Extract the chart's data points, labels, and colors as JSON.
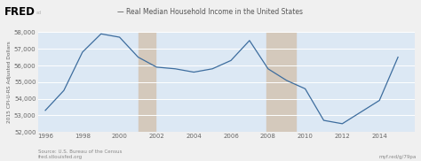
{
  "title": "Real Median Household Income in the United States",
  "ylabel": "2015 CPI-U-RS Adjusted Dollars",
  "years": [
    1996,
    1997,
    1998,
    1999,
    2000,
    2001,
    2002,
    2003,
    2004,
    2005,
    2006,
    2007,
    2008,
    2009,
    2010,
    2011,
    2012,
    2013,
    2014,
    2015
  ],
  "values": [
    53300,
    54500,
    56800,
    57900,
    57700,
    56500,
    55900,
    55800,
    55600,
    55800,
    56300,
    57500,
    55800,
    55100,
    54600,
    52700,
    52500,
    53200,
    53900,
    56500
  ],
  "line_color": "#3d6d9e",
  "fig_bg_color": "#f0f0f0",
  "plot_bg_color": "#dce8f4",
  "header_bg_color": "#e8e8e8",
  "recession_shades": [
    {
      "xmin": 2001.0,
      "xmax": 2001.92
    },
    {
      "xmin": 2007.92,
      "xmax": 2009.5
    }
  ],
  "recession_color": "#d4c9bc",
  "ylim": [
    52000,
    58000
  ],
  "xlim": [
    1995.6,
    2015.9
  ],
  "yticks": [
    52000,
    53000,
    54000,
    55000,
    56000,
    57000,
    58000
  ],
  "xticks": [
    1996,
    1998,
    2000,
    2002,
    2004,
    2006,
    2008,
    2010,
    2012,
    2014
  ],
  "source_text": "Source: U.S. Bureau of the Census\nfred.stlouisfed.org",
  "url_text": "myf.red/g/79pa",
  "grid_color": "#ffffff",
  "title_fontsize": 5.5,
  "tick_fontsize": 5.0,
  "ylabel_fontsize": 4.2,
  "source_fontsize": 4.0,
  "fred_fontsize": 8.5,
  "legend_line": "— "
}
